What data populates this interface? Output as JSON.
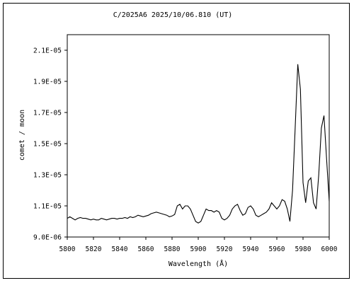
{
  "chart_data": {
    "type": "line",
    "title": "C/2025A6   2025/10/06.810 (UT)",
    "xlabel": "Wavelength (Å)",
    "ylabel": "comet / moon",
    "xlim": [
      5800,
      6000
    ],
    "ylim": [
      9e-06,
      2.2e-05
    ],
    "xticks": [
      5800,
      5820,
      5840,
      5860,
      5880,
      5900,
      5920,
      5940,
      5960,
      5980,
      6000
    ],
    "xtick_labels": [
      "5800",
      "5820",
      "5840",
      "5860",
      "5880",
      "5900",
      "5920",
      "5940",
      "5960",
      "5980",
      "6000"
    ],
    "yticks": [
      9e-06,
      1.1e-05,
      1.3e-05,
      1.5e-05,
      1.7e-05,
      1.9e-05,
      2.1e-05
    ],
    "ytick_labels": [
      "9.0E-06",
      "1.1E-05",
      "1.3E-05",
      "1.5E-05",
      "1.7E-05",
      "1.9E-05",
      "2.1E-05"
    ],
    "grid": false,
    "legend": "none",
    "line_color": "#000000",
    "series": [
      {
        "x": [
          5800,
          5802,
          5804,
          5806,
          5808,
          5810,
          5812,
          5814,
          5816,
          5818,
          5820,
          5822,
          5824,
          5826,
          5828,
          5830,
          5832,
          5834,
          5836,
          5838,
          5840,
          5842,
          5844,
          5846,
          5848,
          5850,
          5852,
          5854,
          5856,
          5858,
          5860,
          5862,
          5864,
          5866,
          5868,
          5870,
          5872,
          5874,
          5876,
          5878,
          5880,
          5882,
          5884,
          5886,
          5888,
          5890,
          5892,
          5894,
          5896,
          5898,
          5900,
          5902,
          5904,
          5906,
          5908,
          5910,
          5912,
          5914,
          5916,
          5918,
          5920,
          5922,
          5924,
          5926,
          5928,
          5930,
          5932,
          5934,
          5936,
          5938,
          5940,
          5942,
          5944,
          5946,
          5948,
          5950,
          5952,
          5954,
          5956,
          5958,
          5960,
          5962,
          5964,
          5966,
          5968,
          5970,
          5972,
          5974,
          5976,
          5978,
          5980,
          5982,
          5984,
          5986,
          5988,
          5990,
          5992,
          5994,
          5996,
          5998,
          6000
        ],
        "y": [
          1.02e-05,
          1.03e-05,
          1.02e-05,
          1.01e-05,
          1.02e-05,
          1.025e-05,
          1.02e-05,
          1.02e-05,
          1.015e-05,
          1.01e-05,
          1.015e-05,
          1.01e-05,
          1.01e-05,
          1.02e-05,
          1.015e-05,
          1.01e-05,
          1.015e-05,
          1.02e-05,
          1.02e-05,
          1.015e-05,
          1.02e-05,
          1.02e-05,
          1.025e-05,
          1.02e-05,
          1.03e-05,
          1.025e-05,
          1.03e-05,
          1.04e-05,
          1.035e-05,
          1.03e-05,
          1.035e-05,
          1.04e-05,
          1.05e-05,
          1.055e-05,
          1.06e-05,
          1.055e-05,
          1.05e-05,
          1.045e-05,
          1.04e-05,
          1.03e-05,
          1.035e-05,
          1.045e-05,
          1.1e-05,
          1.11e-05,
          1.08e-05,
          1.1e-05,
          1.1e-05,
          1.08e-05,
          1.04e-05,
          1e-05,
          9.9e-06,
          1e-05,
          1.04e-05,
          1.08e-05,
          1.07e-05,
          1.07e-05,
          1.06e-05,
          1.07e-05,
          1.06e-05,
          1.02e-05,
          1.01e-05,
          1.02e-05,
          1.04e-05,
          1.08e-05,
          1.1e-05,
          1.11e-05,
          1.07e-05,
          1.04e-05,
          1.05e-05,
          1.09e-05,
          1.1e-05,
          1.08e-05,
          1.04e-05,
          1.03e-05,
          1.04e-05,
          1.05e-05,
          1.06e-05,
          1.08e-05,
          1.12e-05,
          1.1e-05,
          1.08e-05,
          1.1e-05,
          1.14e-05,
          1.13e-05,
          1.08e-05,
          1e-05,
          1.2e-05,
          1.6e-05,
          2.01e-05,
          1.85e-05,
          1.25e-05,
          1.12e-05,
          1.26e-05,
          1.28e-05,
          1.12e-05,
          1.08e-05,
          1.3e-05,
          1.6e-05,
          1.68e-05,
          1.4e-05,
          1.13e-05
        ]
      }
    ]
  }
}
